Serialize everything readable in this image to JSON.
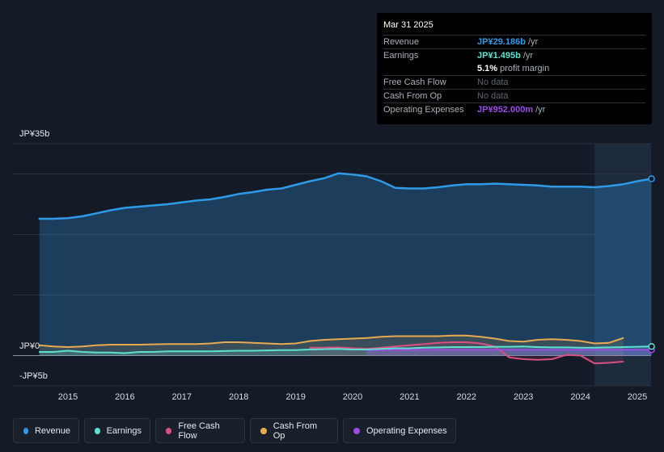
{
  "colors": {
    "revenue": "#2f9be8",
    "earnings": "#5de0d1",
    "free_cash_flow": "#d8507f",
    "cash_from_op": "#e9a950",
    "operating_expenses": "#9d4ae6"
  },
  "y_axis": {
    "top_label": "JP¥35b",
    "zero_label": "JP¥0",
    "bottom_label": "-JP¥5b"
  },
  "tooltip": {
    "date": "Mar 31 2025",
    "rows": [
      {
        "label": "Revenue",
        "value": "JP¥29.186b",
        "unit": "/yr"
      },
      {
        "label": "Earnings",
        "value": "JP¥1.495b",
        "unit": "/yr"
      },
      {
        "label": "",
        "value": "5.1%",
        "unit": "profit margin"
      },
      {
        "label": "Free Cash Flow",
        "value": "No data"
      },
      {
        "label": "Cash From Op",
        "value": "No data"
      },
      {
        "label": "Operating Expenses",
        "value": "JP¥952.000m",
        "unit": "/yr"
      }
    ]
  },
  "legend": [
    {
      "label": "Revenue"
    },
    {
      "label": "Earnings"
    },
    {
      "label": "Free Cash Flow"
    },
    {
      "label": "Cash From Op"
    },
    {
      "label": "Operating Expenses"
    }
  ],
  "chart_data": {
    "type": "area",
    "title": "",
    "xlabel": "",
    "ylabel": "",
    "unit": "JP¥ billions",
    "ylim": [
      -5,
      35
    ],
    "xlim": [
      2014.25,
      2025.25
    ],
    "x_ticks": [
      "2015",
      "2016",
      "2017",
      "2018",
      "2019",
      "2020",
      "2021",
      "2022",
      "2023",
      "2024",
      "2025"
    ],
    "highlight_from": 2024.25,
    "series": [
      {
        "name": "Revenue",
        "key": "revenue",
        "x": [
          2014.5,
          2014.75,
          2015.0,
          2015.25,
          2015.5,
          2015.75,
          2016.0,
          2016.25,
          2016.5,
          2016.75,
          2017.0,
          2017.25,
          2017.5,
          2017.75,
          2018.0,
          2018.25,
          2018.5,
          2018.75,
          2019.0,
          2019.25,
          2019.5,
          2019.75,
          2020.0,
          2020.25,
          2020.5,
          2020.75,
          2021.0,
          2021.25,
          2021.5,
          2021.75,
          2022.0,
          2022.25,
          2022.5,
          2022.75,
          2023.0,
          2023.25,
          2023.5,
          2023.75,
          2024.0,
          2024.25,
          2024.5,
          2024.75,
          2025.0,
          2025.25
        ],
        "values": [
          22.6,
          22.6,
          22.7,
          23.0,
          23.5,
          24.0,
          24.4,
          24.6,
          24.8,
          25.0,
          25.3,
          25.6,
          25.8,
          26.2,
          26.7,
          27.0,
          27.4,
          27.6,
          28.2,
          28.8,
          29.3,
          30.1,
          29.9,
          29.6,
          28.8,
          27.7,
          27.6,
          27.6,
          27.8,
          28.1,
          28.3,
          28.3,
          28.4,
          28.3,
          28.2,
          28.1,
          27.9,
          27.9,
          27.9,
          27.8,
          28.0,
          28.3,
          28.8,
          29.2
        ]
      },
      {
        "name": "Earnings",
        "key": "earnings",
        "x": [
          2014.5,
          2014.75,
          2015.0,
          2015.25,
          2015.5,
          2015.75,
          2016.0,
          2016.25,
          2016.5,
          2016.75,
          2017.0,
          2017.25,
          2017.5,
          2017.75,
          2018.0,
          2018.25,
          2018.5,
          2018.75,
          2019.0,
          2019.25,
          2019.5,
          2019.75,
          2020.0,
          2020.25,
          2020.5,
          2020.75,
          2021.0,
          2021.25,
          2021.5,
          2021.75,
          2022.0,
          2022.25,
          2022.5,
          2022.75,
          2023.0,
          2023.25,
          2023.5,
          2023.75,
          2024.0,
          2024.25,
          2024.5,
          2024.75,
          2025.0,
          2025.25
        ],
        "values": [
          0.6,
          0.6,
          0.8,
          0.6,
          0.5,
          0.5,
          0.4,
          0.6,
          0.6,
          0.7,
          0.7,
          0.7,
          0.7,
          0.75,
          0.8,
          0.8,
          0.85,
          0.9,
          0.9,
          1.0,
          1.05,
          1.1,
          1.0,
          1.0,
          1.1,
          1.2,
          1.2,
          1.3,
          1.35,
          1.4,
          1.4,
          1.4,
          1.45,
          1.45,
          1.5,
          1.4,
          1.35,
          1.35,
          1.3,
          1.3,
          1.35,
          1.4,
          1.45,
          1.5
        ]
      },
      {
        "name": "Free Cash Flow",
        "key": "free_cash_flow",
        "x": [
          2019.25,
          2019.5,
          2019.75,
          2020.0,
          2020.25,
          2020.5,
          2020.75,
          2021.0,
          2021.25,
          2021.5,
          2021.75,
          2022.0,
          2022.25,
          2022.5,
          2022.75,
          2023.0,
          2023.25,
          2023.5,
          2023.75,
          2024.0,
          2024.25,
          2024.5,
          2024.75
        ],
        "values": [
          1.3,
          1.3,
          1.35,
          1.2,
          1.1,
          1.3,
          1.5,
          1.7,
          1.9,
          2.1,
          2.2,
          2.2,
          2.0,
          1.5,
          -0.3,
          -0.6,
          -0.7,
          -0.6,
          0.1,
          0.0,
          -1.3,
          -1.2,
          -1.0
        ]
      },
      {
        "name": "Cash From Op",
        "key": "cash_from_op",
        "x": [
          2014.5,
          2014.75,
          2015.0,
          2015.25,
          2015.5,
          2015.75,
          2016.0,
          2016.25,
          2016.5,
          2016.75,
          2017.0,
          2017.25,
          2017.5,
          2017.75,
          2018.0,
          2018.25,
          2018.5,
          2018.75,
          2019.0,
          2019.25,
          2019.5,
          2019.75,
          2020.0,
          2020.25,
          2020.5,
          2020.75,
          2021.0,
          2021.25,
          2021.5,
          2021.75,
          2022.0,
          2022.25,
          2022.5,
          2022.75,
          2023.0,
          2023.25,
          2023.5,
          2023.75,
          2024.0,
          2024.25,
          2024.5,
          2024.75
        ],
        "values": [
          1.7,
          1.5,
          1.4,
          1.5,
          1.7,
          1.8,
          1.8,
          1.8,
          1.85,
          1.9,
          1.9,
          1.9,
          2.0,
          2.2,
          2.2,
          2.1,
          2.0,
          1.9,
          2.0,
          2.4,
          2.6,
          2.7,
          2.8,
          2.9,
          3.1,
          3.2,
          3.2,
          3.2,
          3.2,
          3.3,
          3.3,
          3.1,
          2.8,
          2.4,
          2.3,
          2.6,
          2.7,
          2.6,
          2.4,
          2.0,
          2.1,
          2.9
        ]
      },
      {
        "name": "Operating Expenses",
        "key": "operating_expenses",
        "x": [
          2020.25,
          2020.5,
          2020.75,
          2021.0,
          2021.5,
          2022.0,
          2022.5,
          2023.0,
          2023.5,
          2024.0,
          2024.5,
          2025.0,
          2025.25
        ],
        "values": [
          0.9,
          0.92,
          0.93,
          0.94,
          0.95,
          0.95,
          0.95,
          0.95,
          0.95,
          0.95,
          0.95,
          0.95,
          0.952
        ]
      }
    ]
  }
}
